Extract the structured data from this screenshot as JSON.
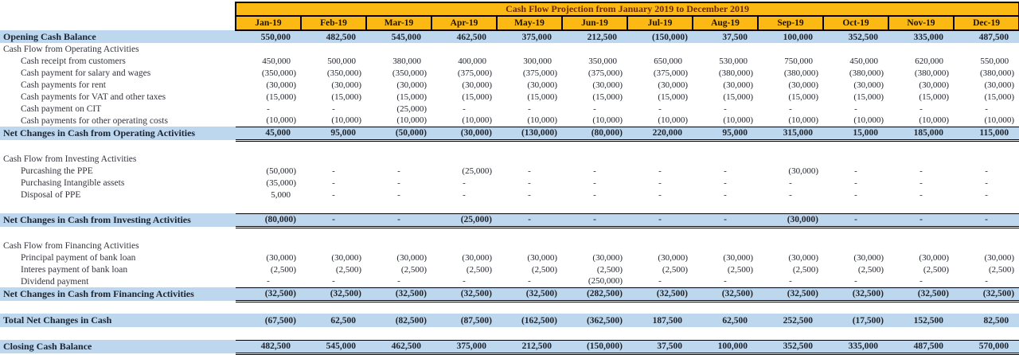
{
  "title": "Cash Flow Projection from January 2019 to December 2019",
  "months": [
    "Jan-19",
    "Feb-19",
    "Mar-19",
    "Apr-19",
    "May-19",
    "Jun-19",
    "Jul-19",
    "Aug-19",
    "Sep-19",
    "Oct-19",
    "Nov-19",
    "Dec-19"
  ],
  "colors": {
    "header_bg": "#FDB913",
    "band_bg": "#BDD7EE",
    "title_text": "#6E2A00",
    "border": "#000000"
  },
  "rows": [
    {
      "type": "open",
      "label": "Opening Cash Balance",
      "values": [
        "550,000",
        "482,500",
        "545,000",
        "462,500",
        "375,000",
        "212,500",
        "(150,000)",
        "37,500",
        "100,000",
        "352,500",
        "335,000",
        "487,500"
      ]
    },
    {
      "type": "sec",
      "label": "Cash Flow from Operating Activities",
      "values": null
    },
    {
      "type": "item",
      "label": "Cash receipt from customers",
      "values": [
        "450,000",
        "500,000",
        "380,000",
        "400,000",
        "300,000",
        "350,000",
        "650,000",
        "530,000",
        "750,000",
        "450,000",
        "620,000",
        "550,000"
      ]
    },
    {
      "type": "item",
      "label": "Cash payment for salary and wages",
      "values": [
        "(350,000)",
        "(350,000)",
        "(350,000)",
        "(375,000)",
        "(375,000)",
        "(375,000)",
        "(375,000)",
        "(380,000)",
        "(380,000)",
        "(380,000)",
        "(380,000)",
        "(380,000)"
      ]
    },
    {
      "type": "item",
      "label": "Cash payments for rent",
      "values": [
        "(30,000)",
        "(30,000)",
        "(30,000)",
        "(30,000)",
        "(30,000)",
        "(30,000)",
        "(30,000)",
        "(30,000)",
        "(30,000)",
        "(30,000)",
        "(30,000)",
        "(30,000)"
      ]
    },
    {
      "type": "item",
      "label": "Cash payments for VAT and other taxes",
      "values": [
        "(15,000)",
        "(15,000)",
        "(15,000)",
        "(15,000)",
        "(15,000)",
        "(15,000)",
        "(15,000)",
        "(15,000)",
        "(15,000)",
        "(15,000)",
        "(15,000)",
        "(15,000)"
      ]
    },
    {
      "type": "item",
      "label": "Cash payment on CIT",
      "values": [
        "-",
        "-",
        "(25,000)",
        "-",
        "-",
        "-",
        "-",
        "-",
        "-",
        "-",
        "-",
        "-"
      ]
    },
    {
      "type": "item",
      "label": "Cash payments for other operating costs",
      "values": [
        "(10,000)",
        "(10,000)",
        "(10,000)",
        "(10,000)",
        "(10,000)",
        "(10,000)",
        "(10,000)",
        "(10,000)",
        "(10,000)",
        "(10,000)",
        "(10,000)",
        "(10,000)"
      ]
    },
    {
      "type": "net",
      "label": "Net Changes in Cash from Operating Activities",
      "values": [
        "45,000",
        "95,000",
        "(50,000)",
        "(30,000)",
        "(130,000)",
        "(80,000)",
        "220,000",
        "95,000",
        "315,000",
        "15,000",
        "185,000",
        "115,000"
      ]
    },
    {
      "type": "blank"
    },
    {
      "type": "sec",
      "label": "Cash Flow from Investing Activities",
      "values": null
    },
    {
      "type": "item",
      "label": "Purcashing the PPE",
      "values": [
        "(50,000)",
        "-",
        "-",
        "(25,000)",
        "-",
        "-",
        "-",
        "-",
        "(30,000)",
        "-",
        "-",
        "-"
      ]
    },
    {
      "type": "item",
      "label": "Purchasing Intangible assets",
      "values": [
        "(35,000)",
        "-",
        "-",
        "-",
        "-",
        "-",
        "-",
        "-",
        "-",
        "-",
        "-",
        "-"
      ]
    },
    {
      "type": "item",
      "label": "Disposal of PPE",
      "values": [
        "5,000",
        "-",
        "-",
        "-",
        "-",
        "-",
        "-",
        "-",
        "-",
        "-",
        "-",
        "-"
      ]
    },
    {
      "type": "blank"
    },
    {
      "type": "net",
      "label": "Net Changes in Cash from Investing Activities",
      "values": [
        "(80,000)",
        "-",
        "-",
        "(25,000)",
        "-",
        "-",
        "-",
        "-",
        "(30,000)",
        "-",
        "-",
        "-"
      ]
    },
    {
      "type": "blank"
    },
    {
      "type": "sec",
      "label": "Cash Flow from Financing Activities",
      "values": null
    },
    {
      "type": "item",
      "label": "Principal payment of bank loan",
      "values": [
        "(30,000)",
        "(30,000)",
        "(30,000)",
        "(30,000)",
        "(30,000)",
        "(30,000)",
        "(30,000)",
        "(30,000)",
        "(30,000)",
        "(30,000)",
        "(30,000)",
        "(30,000)"
      ]
    },
    {
      "type": "item",
      "label": "Interes payment of bank loan",
      "values": [
        "(2,500)",
        "(2,500)",
        "(2,500)",
        "(2,500)",
        "(2,500)",
        "(2,500)",
        "(2,500)",
        "(2,500)",
        "(2,500)",
        "(2,500)",
        "(2,500)",
        "(2,500)"
      ]
    },
    {
      "type": "item",
      "label": "Dividend payment",
      "values": [
        "-",
        "-",
        "-",
        "-",
        "-",
        "(250,000)",
        "-",
        "-",
        "-",
        "-",
        "-",
        "-"
      ]
    },
    {
      "type": "net",
      "label": "Net Changes in Cash from Financing Activities",
      "values": [
        "(32,500)",
        "(32,500)",
        "(32,500)",
        "(32,500)",
        "(32,500)",
        "(282,500)",
        "(32,500)",
        "(32,500)",
        "(32,500)",
        "(32,500)",
        "(32,500)",
        "(32,500)"
      ]
    },
    {
      "type": "blank"
    },
    {
      "type": "total",
      "label": "Total Net Changes in Cash",
      "values": [
        "(67,500)",
        "62,500",
        "(82,500)",
        "(87,500)",
        "(162,500)",
        "(362,500)",
        "187,500",
        "62,500",
        "252,500",
        "(17,500)",
        "152,500",
        "82,500"
      ]
    },
    {
      "type": "blank"
    },
    {
      "type": "close",
      "label": "Closing Cash Balance",
      "values": [
        "482,500",
        "545,000",
        "462,500",
        "375,000",
        "212,500",
        "(150,000)",
        "37,500",
        "100,000",
        "352,500",
        "335,000",
        "487,500",
        "570,000"
      ]
    }
  ]
}
